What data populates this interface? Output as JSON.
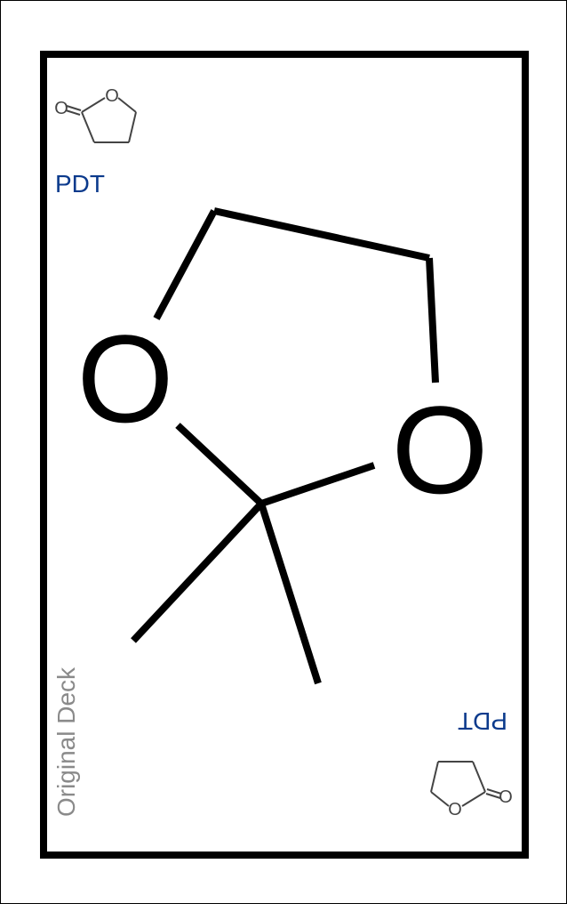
{
  "card": {
    "code": "PDT",
    "deck": "Original Deck",
    "main_atoms": {
      "o_left": "O",
      "o_right": "O"
    },
    "corner_atoms": {
      "o_ring": "O",
      "o_carbonyl": "O"
    },
    "colors": {
      "code": "#0b3a8c",
      "deck": "#8a8a8a",
      "border": "#000000"
    }
  }
}
